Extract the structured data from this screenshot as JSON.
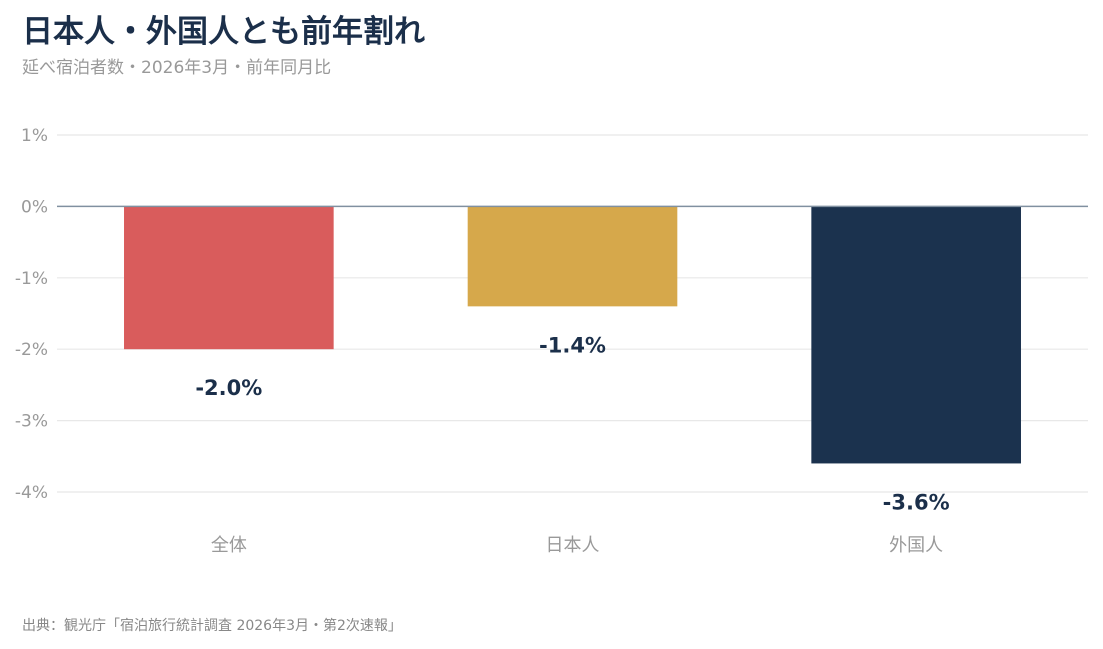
{
  "header": {
    "title": "日本人・外国人とも前年割れ",
    "subtitle": "延べ宿泊者数・2026年3月・前年同月比"
  },
  "footer": {
    "source": "出典：観光庁「宿泊旅行統計調査 2026年3月・第2次速報」"
  },
  "chart_data": {
    "type": "bar",
    "title": "日本人・外国人とも前年割れ",
    "subtitle": "延べ宿泊者数・2026年3月・前年同月比",
    "categories": [
      "全体",
      "日本人",
      "外国人"
    ],
    "values": [
      -2.0,
      -1.4,
      -3.6
    ],
    "value_labels": [
      "-2.0%",
      "-1.4%",
      "-3.6%"
    ],
    "colors": [
      "#d95c5c",
      "#d6a84b",
      "#1b324e"
    ],
    "ylim": [
      -4,
      1
    ],
    "yticks": [
      1,
      0,
      -1,
      -2,
      -3,
      -4
    ],
    "ytick_labels": [
      "1%",
      "0%",
      "-1%",
      "-2%",
      "-3%",
      "-4%"
    ],
    "xlabel": "",
    "ylabel": "",
    "grid": true,
    "zero_line_color": "#8090a0",
    "grid_color": "#e8e8e8"
  }
}
